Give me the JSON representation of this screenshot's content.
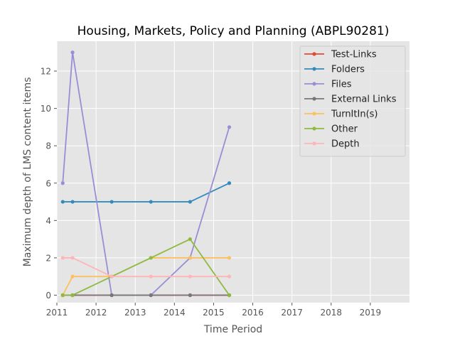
{
  "chart_data": {
    "type": "line",
    "title": "Housing, Markets, Policy and Planning (ABPL90281)",
    "xlabel": "Time Period",
    "ylabel": "Maximum depth of LMS content items",
    "xlim": [
      2011,
      2020
    ],
    "ylim": [
      -0.4,
      13.6
    ],
    "x_ticks": [
      2011,
      2012,
      2013,
      2014,
      2015,
      2016,
      2017,
      2018,
      2019
    ],
    "y_ticks": [
      0,
      2,
      4,
      6,
      8,
      10,
      12
    ],
    "grid": true,
    "legend_position": "top-right",
    "x": [
      2011.15,
      2011.4,
      2012.4,
      2013.4,
      2014.4,
      2015.4
    ],
    "series": [
      {
        "name": "Test-Links",
        "color": "#E24A33",
        "values": [
          0,
          0,
          0,
          0,
          0,
          0
        ]
      },
      {
        "name": "Folders",
        "color": "#348ABD",
        "values": [
          5,
          5,
          5,
          5,
          5,
          6
        ]
      },
      {
        "name": "Files",
        "color": "#988ED5",
        "values": [
          6,
          13,
          0,
          0,
          2,
          9
        ]
      },
      {
        "name": "External Links",
        "color": "#777777",
        "values": [
          0,
          0,
          0,
          0,
          0,
          0
        ]
      },
      {
        "name": "TurnItIn(s)",
        "color": "#FBC15E",
        "values": [
          0,
          1,
          1,
          2,
          2,
          2
        ]
      },
      {
        "name": "Other",
        "color": "#8EBA42",
        "values": [
          0,
          0,
          1,
          2,
          3,
          0
        ]
      },
      {
        "name": "Depth",
        "color": "#FFB5B8",
        "values": [
          2,
          2,
          1,
          1,
          1,
          1
        ]
      }
    ]
  }
}
